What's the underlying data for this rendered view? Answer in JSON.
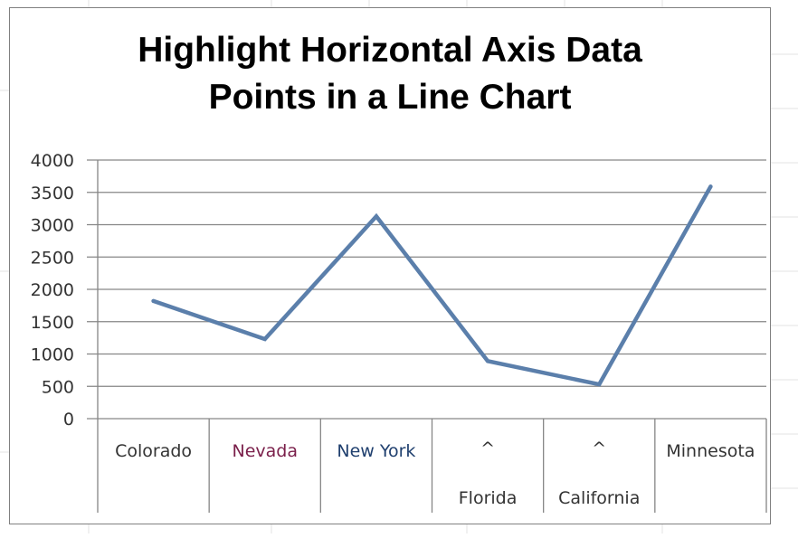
{
  "chart_data": {
    "type": "line",
    "title_lines": [
      "Highlight Horizontal Axis Data",
      "Points in a Line Chart"
    ],
    "categories": [
      "Colorado",
      "Nevada",
      "New York",
      "Florida",
      "California",
      "Minnesota"
    ],
    "category_markers": [
      "",
      "",
      "",
      "^",
      "^",
      ""
    ],
    "values": [
      1820,
      1230,
      3130,
      890,
      530,
      3590
    ],
    "ylim": [
      0,
      4000
    ],
    "yticks": [
      "0",
      "500",
      "1000",
      "1500",
      "2000",
      "2500",
      "3000",
      "3500",
      "4000"
    ],
    "grid": true,
    "legend": "none",
    "line_color": "#5b7fab",
    "category_label_colors": [
      "#333333",
      "#7a1f4a",
      "#1f3f6e",
      "#333333",
      "#333333",
      "#333333"
    ]
  }
}
